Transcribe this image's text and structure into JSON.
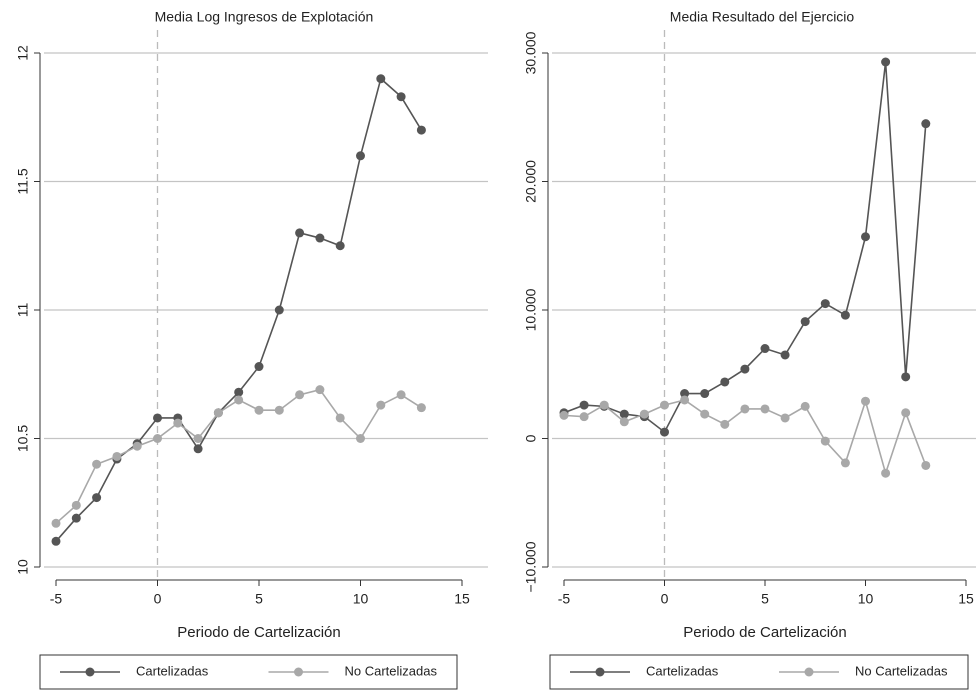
{
  "chart_data": [
    {
      "type": "line",
      "title": "Media Log Ingresos de Explotación",
      "xlabel": "Periodo de Cartelización",
      "xlim": [
        -5,
        15
      ],
      "xticks": [
        -5,
        0,
        5,
        10,
        15
      ],
      "ylim": [
        10,
        12
      ],
      "yticks": [
        10,
        10.5,
        11,
        11.5,
        12
      ],
      "grid": true,
      "vline": 0,
      "legend": "bottom",
      "x": [
        -5,
        -4,
        -3,
        -2,
        -1,
        0,
        1,
        2,
        3,
        4,
        5,
        6,
        7,
        8,
        9,
        10,
        11,
        12,
        13
      ],
      "series": [
        {
          "name": "Cartelizadas",
          "color": "#555555",
          "values": [
            10.1,
            10.19,
            10.27,
            10.42,
            10.48,
            10.58,
            10.58,
            10.46,
            10.6,
            10.68,
            10.78,
            11.0,
            11.3,
            11.28,
            11.25,
            11.6,
            11.9,
            11.83,
            11.7
          ]
        },
        {
          "name": "No Cartelizadas",
          "color": "#a8a8a8",
          "values": [
            10.17,
            10.24,
            10.4,
            10.43,
            10.47,
            10.5,
            10.56,
            10.5,
            10.6,
            10.65,
            10.61,
            10.61,
            10.67,
            10.69,
            10.58,
            10.5,
            10.63,
            10.67,
            10.62
          ]
        }
      ]
    },
    {
      "type": "line",
      "title": "Media Resultado del Ejercicio",
      "xlabel": "Periodo de Cartelización",
      "xlim": [
        -5,
        15
      ],
      "xticks": [
        -5,
        0,
        5,
        10,
        15
      ],
      "ylim": [
        -10000,
        30000
      ],
      "yticks": [
        {
          "value": -10000,
          "label": "−10.000"
        },
        0,
        {
          "value": 10000,
          "label": "10.000"
        },
        {
          "value": 20000,
          "label": "20.000"
        },
        {
          "value": 30000,
          "label": "30.000"
        }
      ],
      "grid": true,
      "vline": 0,
      "legend": "bottom",
      "x": [
        -5,
        -4,
        -3,
        -2,
        -1,
        0,
        1,
        2,
        3,
        4,
        5,
        6,
        7,
        8,
        9,
        10,
        11,
        12,
        13
      ],
      "series": [
        {
          "name": "Cartelizadas",
          "color": "#555555",
          "values": [
            2000,
            2600,
            2500,
            1900,
            1700,
            500,
            3500,
            3500,
            4400,
            5400,
            7000,
            6500,
            9100,
            10500,
            9600,
            15700,
            29300,
            4800,
            24500
          ]
        },
        {
          "name": "No Cartelizadas",
          "color": "#a8a8a8",
          "values": [
            1800,
            1700,
            2600,
            1300,
            1900,
            2600,
            3000,
            1900,
            1100,
            2300,
            2300,
            1600,
            2500,
            -200,
            -1900,
            2900,
            -2700,
            2000,
            -2100
          ]
        }
      ]
    }
  ]
}
